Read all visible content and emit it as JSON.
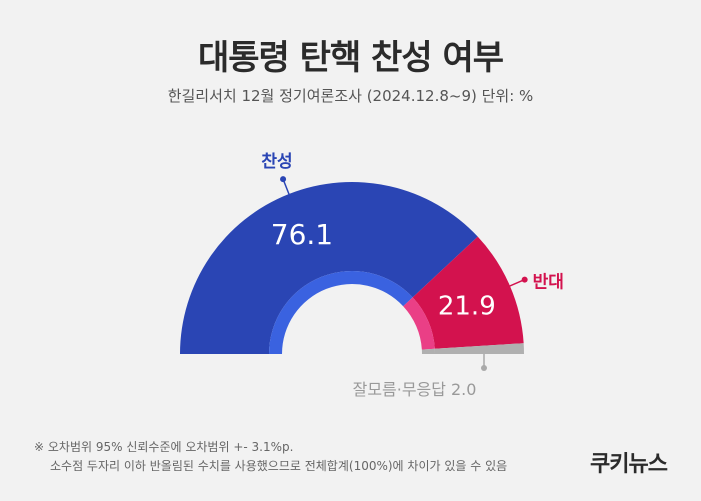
{
  "title": "대통령 탄핵 찬성 여부",
  "subtitle": "한길리서치 12월 정기여론조사 (2024.12.8~9) 단위: %",
  "chart_data": {
    "type": "pie",
    "title": "대통령 탄핵 찬성 여부",
    "subtitle": "한길리서치 12월 정기여론조사 (2024.12.8~9) 단위: %",
    "unit": "%",
    "slices": [
      {
        "label": "찬성",
        "value": 76.1,
        "value_label": "76.1",
        "color": "#2a45b4",
        "inner_color": "#3a62e0"
      },
      {
        "label": "반대",
        "value": 21.9,
        "value_label": "21.9",
        "color": "#d3124e",
        "inner_color": "#ea3f86"
      },
      {
        "label": "잘모름·무응답",
        "value": 2.0,
        "value_label": "2.0",
        "color": "#b0b0b0",
        "inner_color": "#b0b0b0"
      }
    ]
  },
  "footnote": {
    "line1": "※ 오차범위 95% 신뢰수준에 오차범위 +- 3.1%p.",
    "line2": "소수점 두자리 이하 반올림된 수치를 사용했으므로 전체합계(100%)에 차이가 있을 수 있음"
  },
  "brand": "쿠키뉴스"
}
